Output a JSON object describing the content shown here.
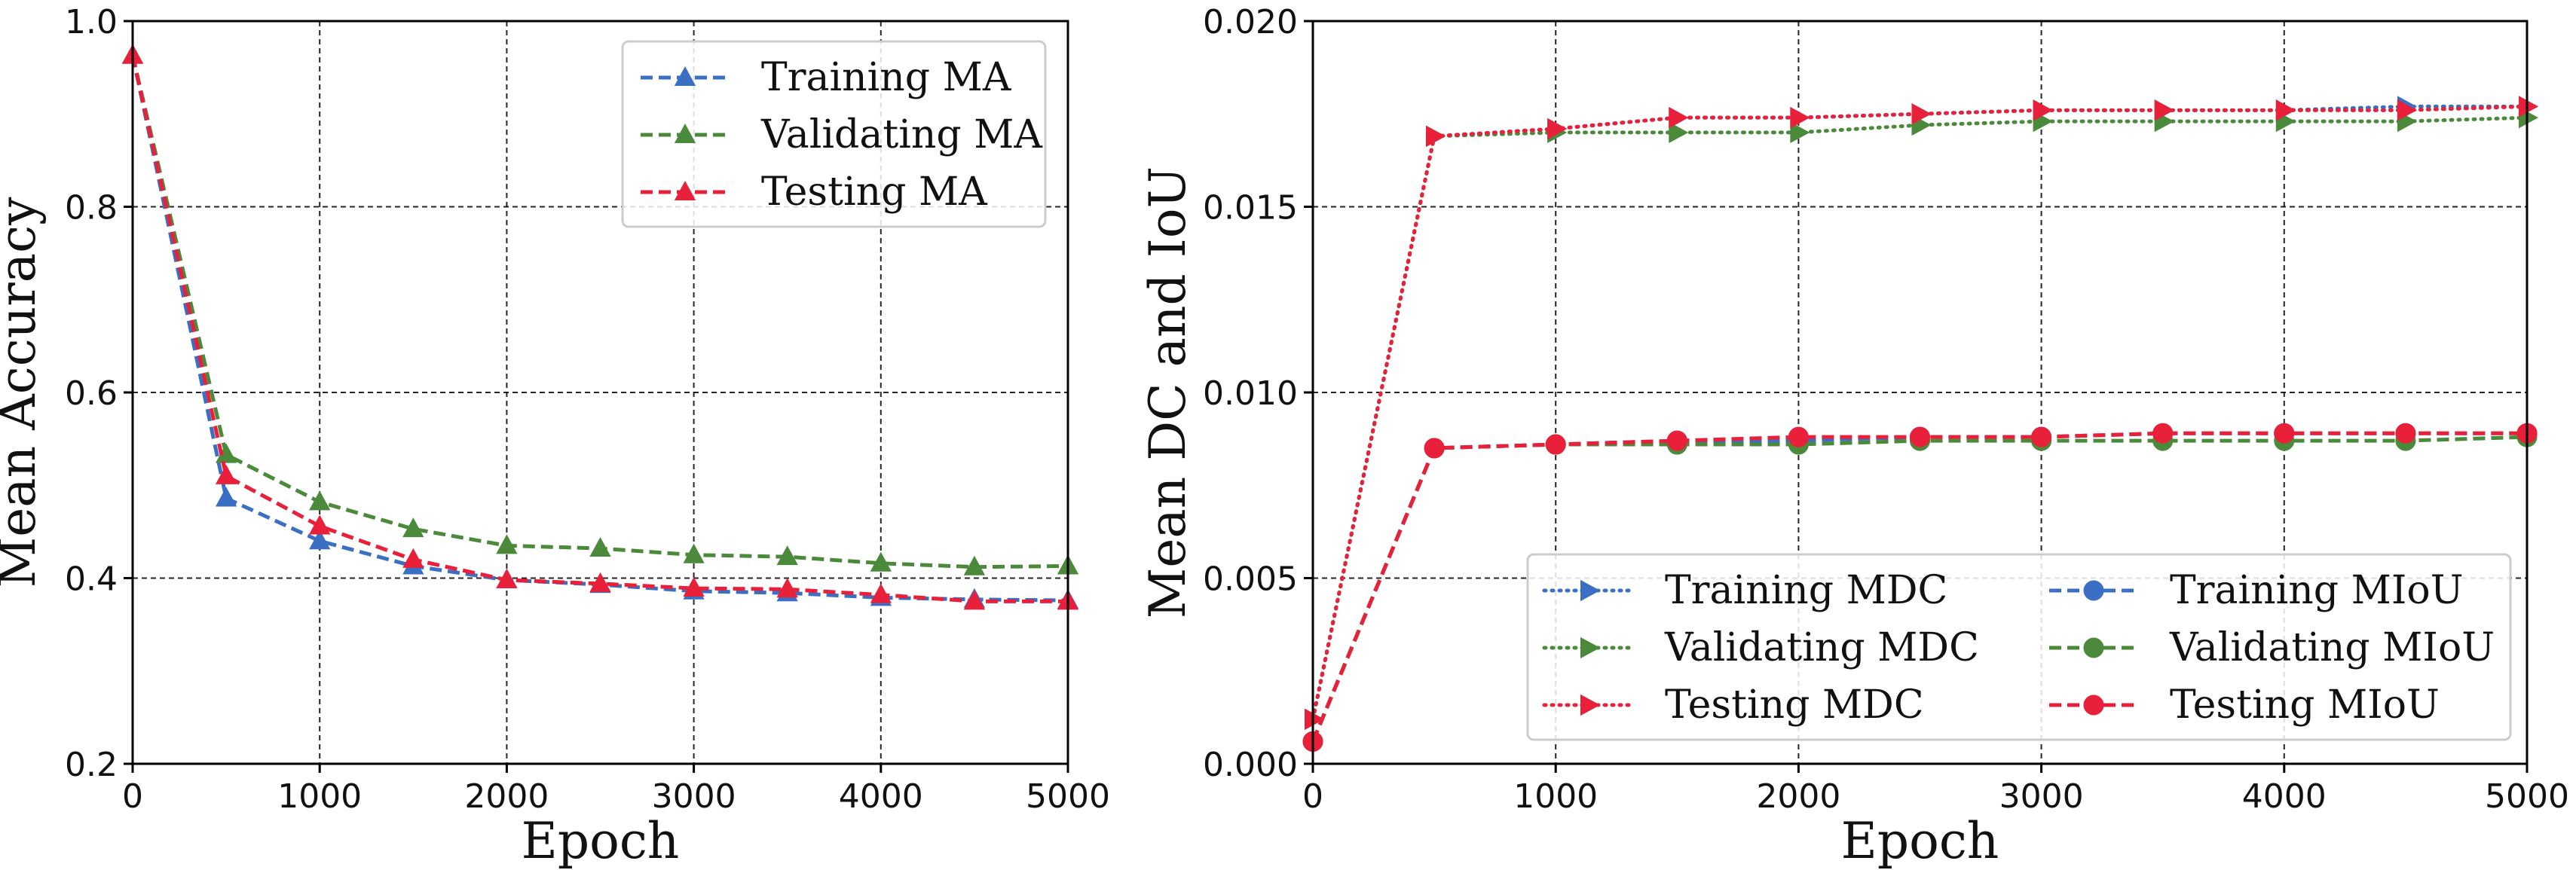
{
  "chart_data": [
    {
      "type": "line",
      "xlabel": "Epoch",
      "ylabel": "Mean Accuracy",
      "xlim": [
        0,
        5000
      ],
      "ylim": [
        0.2,
        1.0
      ],
      "xticks": [
        0,
        1000,
        2000,
        3000,
        4000,
        5000
      ],
      "yticks": [
        0.2,
        0.4,
        0.6,
        0.8,
        1.0
      ],
      "xtick_labels": [
        "0",
        "1000",
        "2000",
        "3000",
        "4000",
        "5000"
      ],
      "ytick_labels": [
        "0.2",
        "0.4",
        "0.6",
        "0.8",
        "1.0"
      ],
      "grid": true,
      "legend_position": "top-right",
      "legend_columns": 1,
      "x": [
        0,
        500,
        1000,
        1500,
        2000,
        2500,
        3000,
        3500,
        4000,
        4500,
        5000
      ],
      "series": [
        {
          "name": "Training MA",
          "color": "#3a6fc4",
          "marker": "triangle-up",
          "linestyle": "dashed",
          "values": [
            0.963,
            0.486,
            0.44,
            0.413,
            0.398,
            0.393,
            0.386,
            0.384,
            0.379,
            0.377,
            0.376
          ]
        },
        {
          "name": "Validating MA",
          "color": "#4a8a3a",
          "marker": "triangle-up",
          "linestyle": "dashed",
          "values": [
            0.963,
            0.533,
            0.482,
            0.453,
            0.435,
            0.432,
            0.425,
            0.423,
            0.416,
            0.412,
            0.413
          ]
        },
        {
          "name": "Testing MA",
          "color": "#e8203a",
          "marker": "triangle-up",
          "linestyle": "dashed",
          "values": [
            0.963,
            0.51,
            0.456,
            0.42,
            0.398,
            0.394,
            0.389,
            0.388,
            0.382,
            0.375,
            0.375
          ]
        }
      ]
    },
    {
      "type": "line",
      "xlabel": "Epoch",
      "ylabel": "Mean DC and IoU",
      "xlim": [
        0,
        5000
      ],
      "ylim": [
        0.0,
        0.02
      ],
      "xticks": [
        0,
        1000,
        2000,
        3000,
        4000,
        5000
      ],
      "yticks": [
        0.0,
        0.005,
        0.01,
        0.015,
        0.02
      ],
      "xtick_labels": [
        "0",
        "1000",
        "2000",
        "3000",
        "4000",
        "5000"
      ],
      "ytick_labels": [
        "0.000",
        "0.005",
        "0.010",
        "0.015",
        "0.020"
      ],
      "grid": true,
      "legend_position": "bottom-right",
      "legend_columns": 2,
      "x": [
        0,
        500,
        1000,
        1500,
        2000,
        2500,
        3000,
        3500,
        4000,
        4500,
        5000
      ],
      "series": [
        {
          "name": "Training MDC",
          "color": "#3a6fc4",
          "marker": "triangle-right",
          "linestyle": "dotted",
          "values": [
            0.0012,
            0.0169,
            0.0171,
            0.0174,
            0.0174,
            0.0175,
            0.0176,
            0.0176,
            0.0176,
            0.0177,
            0.0177
          ]
        },
        {
          "name": "Validating MDC",
          "color": "#4a8a3a",
          "marker": "triangle-right",
          "linestyle": "dotted",
          "values": [
            0.0012,
            0.0169,
            0.017,
            0.017,
            0.017,
            0.0172,
            0.0173,
            0.0173,
            0.0173,
            0.0173,
            0.0174
          ]
        },
        {
          "name": "Testing MDC",
          "color": "#e8203a",
          "marker": "triangle-right",
          "linestyle": "dotted",
          "values": [
            0.0012,
            0.0169,
            0.0171,
            0.0174,
            0.0174,
            0.0175,
            0.0176,
            0.0176,
            0.0176,
            0.0176,
            0.0177
          ]
        },
        {
          "name": "Training MIoU",
          "color": "#3a6fc4",
          "marker": "circle",
          "linestyle": "dashed",
          "values": [
            0.0006,
            0.0085,
            0.0086,
            0.0087,
            0.0087,
            0.0088,
            0.0088,
            0.0089,
            0.0089,
            0.0089,
            0.0089
          ]
        },
        {
          "name": "Validating MIoU",
          "color": "#4a8a3a",
          "marker": "circle",
          "linestyle": "dashed",
          "values": [
            0.0006,
            0.0085,
            0.0086,
            0.0086,
            0.0086,
            0.0087,
            0.0087,
            0.0087,
            0.0087,
            0.0087,
            0.0088
          ]
        },
        {
          "name": "Testing MIoU",
          "color": "#e8203a",
          "marker": "circle",
          "linestyle": "dashed",
          "values": [
            0.0006,
            0.0085,
            0.0086,
            0.0087,
            0.0088,
            0.0088,
            0.0088,
            0.0089,
            0.0089,
            0.0089,
            0.0089
          ]
        }
      ]
    }
  ]
}
